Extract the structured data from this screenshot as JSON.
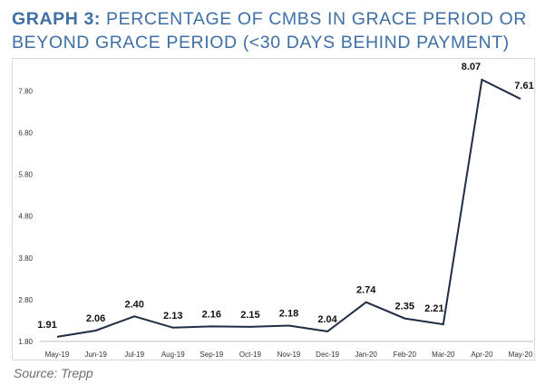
{
  "title": {
    "lead": "GRAPH 3:",
    "rest": " PERCENTAGE OF CMBS IN GRACE PERIOD OR BEYOND GRACE PERIOD (<30 DAYS BEHIND PAYMENT)"
  },
  "source": "Source: Trepp",
  "colors": {
    "title": "#3e6fa6",
    "line": "#1f2d45",
    "frame": "#d9d9d9"
  },
  "chart_data": {
    "type": "line",
    "title": "GRAPH 3: PERCENTAGE OF CMBS IN GRACE PERIOD OR BEYOND GRACE PERIOD (<30 DAYS BEHIND PAYMENT)",
    "xlabel": "",
    "ylabel": "",
    "categories": [
      "May-19",
      "Jun-19",
      "Jul-19",
      "Aug-19",
      "Sep-19",
      "Oct-19",
      "Nov-19",
      "Dec-19",
      "Jan-20",
      "Feb-20",
      "Mar-20",
      "Apr-20",
      "May-20"
    ],
    "values": [
      1.91,
      2.06,
      2.4,
      2.13,
      2.16,
      2.15,
      2.18,
      2.04,
      2.74,
      2.35,
      2.21,
      8.07,
      7.61
    ],
    "value_labels": [
      "1.91",
      "2.06",
      "2.40",
      "2.13",
      "2.16",
      "2.15",
      "2.18",
      "2.04",
      "2.74",
      "2.35",
      "2.21",
      "8.07",
      "7.61"
    ],
    "yticks": [
      "1.80",
      "2.80",
      "3.80",
      "4.80",
      "5.80",
      "6.80",
      "7.80"
    ],
    "ylim": [
      1.8,
      8.07
    ],
    "grid": false,
    "legend": false
  }
}
